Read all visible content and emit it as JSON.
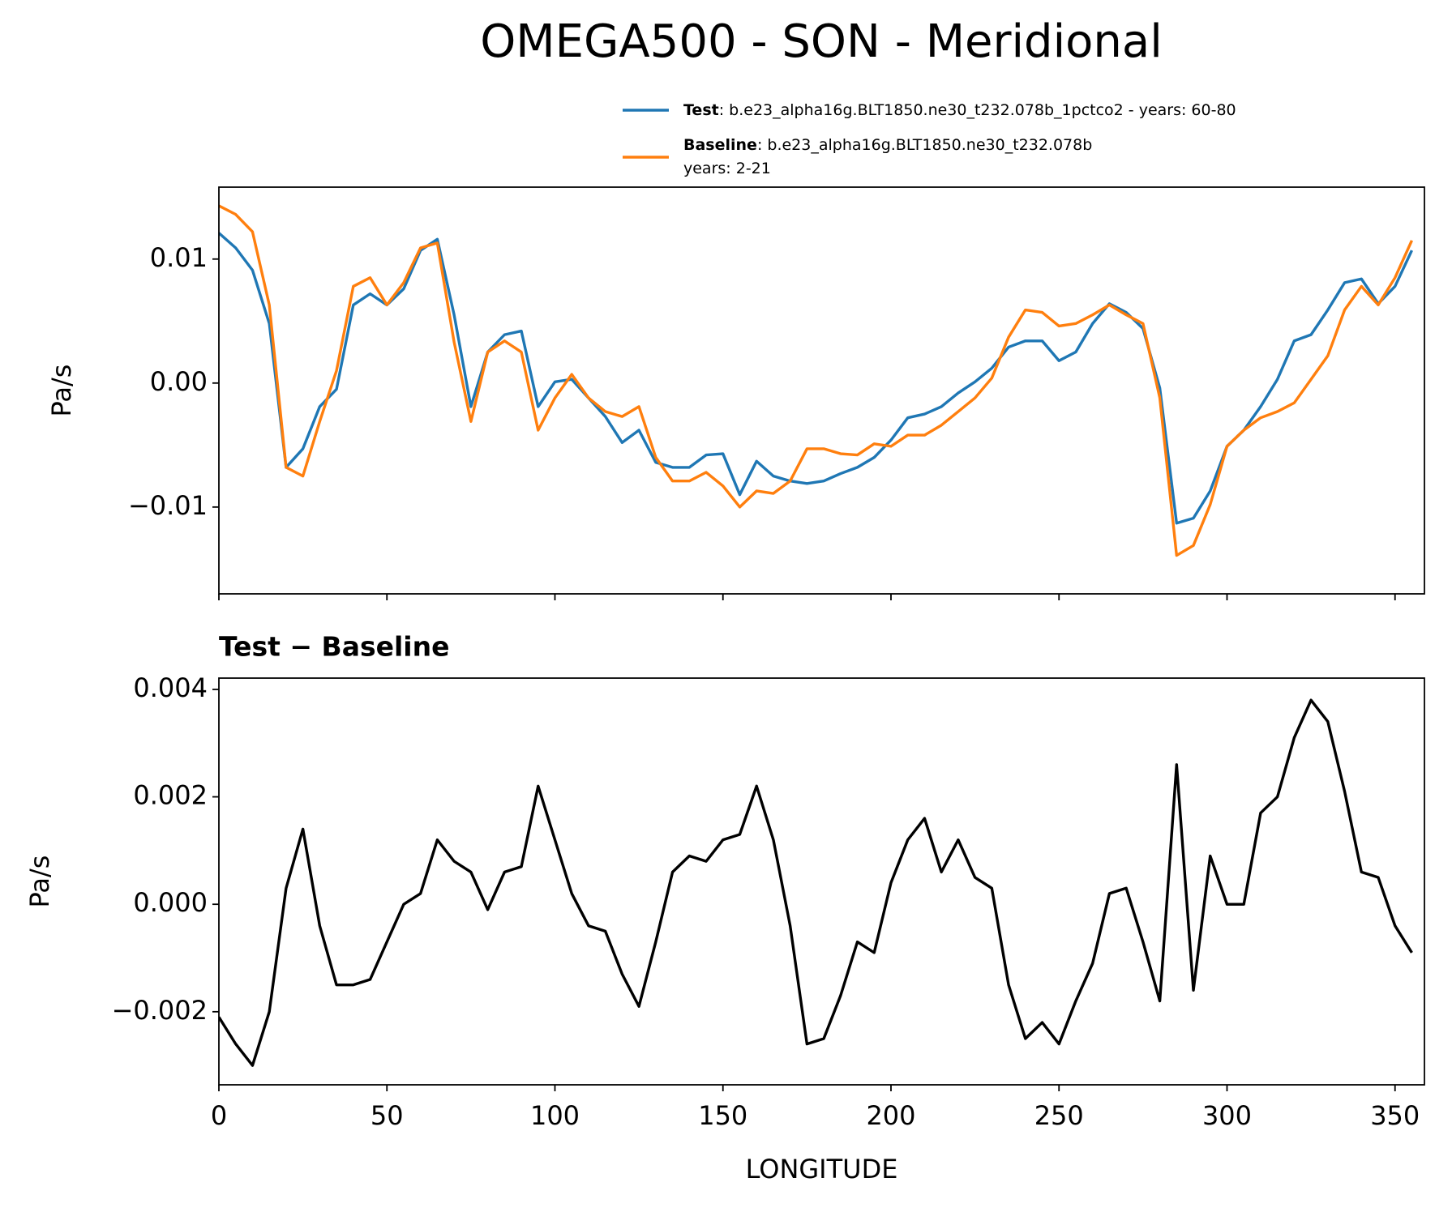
{
  "chart_data": [
    {
      "type": "line",
      "title": "OMEGA500 - SON - Meridional",
      "ylabel": "Pa/s",
      "legend": "above",
      "x": [
        0,
        5,
        10,
        15,
        20,
        25,
        30,
        35,
        40,
        45,
        50,
        55,
        60,
        65,
        70,
        75,
        80,
        85,
        90,
        95,
        100,
        105,
        110,
        115,
        120,
        125,
        130,
        135,
        140,
        145,
        150,
        155,
        160,
        165,
        170,
        175,
        180,
        185,
        190,
        195,
        200,
        205,
        210,
        215,
        220,
        225,
        230,
        235,
        240,
        245,
        250,
        255,
        260,
        265,
        270,
        275,
        280,
        285,
        290,
        295,
        300,
        305,
        310,
        315,
        320,
        325,
        330,
        335,
        340,
        345,
        350,
        355
      ],
      "series": [
        {
          "name": "Test",
          "description": [
            ": b.e23_alpha16g.BLT1850.ne30_t232.078b_1pctco2 - years: 60-80"
          ],
          "color": "#1f77b4",
          "values": [
            0.0121,
            0.0109,
            0.0091,
            0.0048,
            -0.0068,
            -0.0053,
            -0.0019,
            -0.0005,
            0.0063,
            0.0072,
            0.0063,
            0.0076,
            0.0107,
            0.0116,
            0.0055,
            -0.0019,
            0.0025,
            0.0039,
            0.0042,
            -0.0019,
            0.0001,
            0.0003,
            -0.0012,
            -0.0027,
            -0.0048,
            -0.0038,
            -0.0064,
            -0.0068,
            -0.0068,
            -0.0058,
            -0.0057,
            -0.009,
            -0.0063,
            -0.0075,
            -0.0079,
            -0.0081,
            -0.0079,
            -0.0073,
            -0.0068,
            -0.006,
            -0.0046,
            -0.0028,
            -0.0025,
            -0.0019,
            -0.0008,
            0.0001,
            0.0012,
            0.0029,
            0.0034,
            0.0034,
            0.0018,
            0.0025,
            0.0048,
            0.0064,
            0.0057,
            0.0044,
            -0.0004,
            -0.0113,
            -0.0109,
            -0.0087,
            -0.0051,
            -0.0038,
            -0.0019,
            0.0003,
            0.0034,
            0.0039,
            0.0059,
            0.0081,
            0.0084,
            0.0064,
            0.0078,
            0.0107
          ]
        },
        {
          "name": "Baseline",
          "description": [
            ": b.e23_alpha16g.BLT1850.ne30_t232.078b",
            "years: 2-21"
          ],
          "color": "#ff7f0e",
          "values": [
            0.0143,
            0.0136,
            0.0122,
            0.0063,
            -0.0068,
            -0.0075,
            -0.0031,
            0.001,
            0.0078,
            0.0085,
            0.0063,
            0.0081,
            0.0109,
            0.0113,
            0.0033,
            -0.0031,
            0.0025,
            0.0034,
            0.0025,
            -0.0038,
            -0.0012,
            0.0007,
            -0.0012,
            -0.0023,
            -0.0027,
            -0.0019,
            -0.006,
            -0.0079,
            -0.0079,
            -0.0072,
            -0.0083,
            -0.01,
            -0.0087,
            -0.0089,
            -0.0079,
            -0.0053,
            -0.0053,
            -0.0057,
            -0.0058,
            -0.0049,
            -0.0051,
            -0.0042,
            -0.0042,
            -0.0034,
            -0.0023,
            -0.0012,
            0.0004,
            0.0037,
            0.0059,
            0.0057,
            0.0046,
            0.0048,
            0.0055,
            0.0063,
            0.0055,
            0.0048,
            -0.0012,
            -0.0139,
            -0.0131,
            -0.0098,
            -0.0051,
            -0.0038,
            -0.0028,
            -0.0023,
            -0.0016,
            0.0003,
            0.0022,
            0.0059,
            0.0078,
            0.0063,
            0.0085,
            0.0115
          ]
        }
      ],
      "xlim": [
        0,
        358.75
      ],
      "xticks": [
        0,
        50,
        100,
        150,
        200,
        250,
        300,
        350
      ],
      "xticklabels": false,
      "ylim": [
        -0.017,
        0.0158
      ],
      "yticks": [
        {
          "value": -0.01,
          "label": "−0.01"
        },
        {
          "value": 0,
          "label": "0.00"
        },
        0.01
      ]
    },
    {
      "type": "line",
      "title": "Test − Baseline",
      "ylabel": "Pa/s",
      "xlabel": "LONGITUDE",
      "x": [
        0,
        5,
        10,
        15,
        20,
        25,
        30,
        35,
        40,
        45,
        50,
        55,
        60,
        65,
        70,
        75,
        80,
        85,
        90,
        95,
        100,
        105,
        110,
        115,
        120,
        125,
        130,
        135,
        140,
        145,
        150,
        155,
        160,
        165,
        170,
        175,
        180,
        185,
        190,
        195,
        200,
        205,
        210,
        215,
        220,
        225,
        230,
        235,
        240,
        245,
        250,
        255,
        260,
        265,
        270,
        275,
        280,
        285,
        290,
        295,
        300,
        305,
        310,
        315,
        320,
        325,
        330,
        335,
        340,
        345,
        350,
        355
      ],
      "series": [
        {
          "color": "#000000",
          "values": [
            -0.0021,
            -0.0026,
            -0.003,
            -0.002,
            0.0003,
            0.0014,
            -0.0004,
            -0.0015,
            -0.0015,
            -0.0014,
            -0.0007,
            0,
            0.0002,
            0.0012,
            0.0008,
            0.0006,
            -0.0001,
            0.0006,
            0.0007,
            0.0022,
            0.0012,
            0.0002,
            -0.0004,
            -0.0005,
            -0.0013,
            -0.0019,
            -0.0007,
            0.0006,
            0.0009,
            0.0008,
            0.0012,
            0.0013,
            0.0022,
            0.0012,
            -0.0004,
            -0.0026,
            -0.0025,
            -0.0017,
            -0.0007,
            -0.0009,
            0.0004,
            0.0012,
            0.0016,
            0.0006,
            0.0012,
            0.0005,
            0.0003,
            -0.0015,
            -0.0025,
            -0.0022,
            -0.0026,
            -0.0018,
            -0.0011,
            0.0002,
            0.0003,
            -0.0007,
            -0.0018,
            0.0026,
            -0.0016,
            0.0009,
            0,
            0,
            0.0017,
            0.002,
            0.0031,
            0.0038,
            0.0034,
            0.0021,
            0.0006,
            0.0005,
            -0.0004,
            -0.0009
          ]
        }
      ],
      "xlim": [
        0,
        358.75
      ],
      "xticks": [
        0,
        50,
        100,
        150,
        200,
        250,
        300,
        350
      ],
      "xticklabels": true,
      "ylim": [
        -0.00336,
        0.00421
      ],
      "yticks": [
        {
          "value": -0.002,
          "label": "−0.002"
        },
        {
          "value": 0,
          "label": "0.000"
        },
        0.002,
        0.004
      ]
    }
  ]
}
